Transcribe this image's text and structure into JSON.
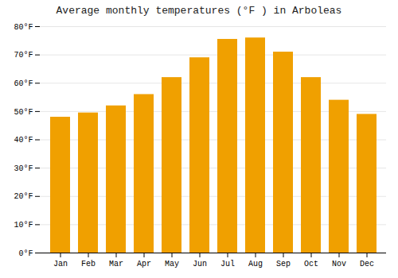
{
  "chart_data": {
    "type": "bar",
    "title": "Average monthly temperatures (°F ) in Arboleas",
    "categories": [
      "Jan",
      "Feb",
      "Mar",
      "Apr",
      "May",
      "Jun",
      "Jul",
      "Aug",
      "Sep",
      "Oct",
      "Nov",
      "Dec"
    ],
    "values": [
      48,
      49.5,
      52,
      56,
      62,
      69,
      75.5,
      76,
      71,
      62,
      54,
      49
    ],
    "color": "#F0A000",
    "ylim": [
      0,
      80
    ],
    "yticks": [
      {
        "value": 0,
        "label": "0°F"
      },
      {
        "value": 10,
        "label": "10°F"
      },
      {
        "value": 20,
        "label": "20°F"
      },
      {
        "value": 30,
        "label": "30°F"
      },
      {
        "value": 40,
        "label": "40°F"
      },
      {
        "value": 50,
        "label": "50°F"
      },
      {
        "value": 60,
        "label": "60°F"
      },
      {
        "value": 70,
        "label": "70°F"
      },
      {
        "value": 80,
        "label": "80°F"
      }
    ],
    "grid": true
  }
}
